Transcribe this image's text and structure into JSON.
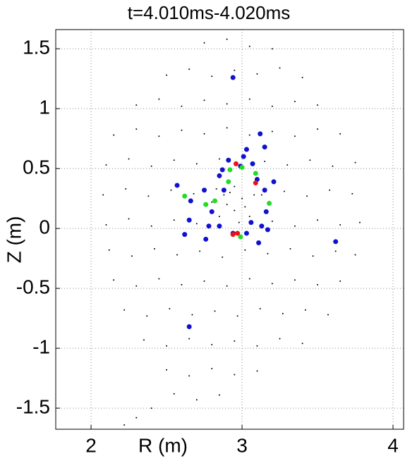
{
  "chart_data": {
    "type": "scatter",
    "title": "t=4.010ms-4.020ms",
    "x_label": "R (m)",
    "y_label": "Z (m)",
    "xlim": [
      1.766,
      4.07
    ],
    "ylim": [
      -1.676,
      1.66
    ],
    "xticks": [
      2,
      3,
      4
    ],
    "yticks": [
      -1.5,
      -1,
      -0.5,
      0,
      0.5,
      1,
      1.5
    ],
    "grid": true,
    "series": [
      {
        "color": "#000000",
        "marker_size": 1,
        "x": [
          2.75,
          2.9,
          3.05,
          3.2,
          2.5,
          2.65,
          2.8,
          2.95,
          3.1,
          3.25,
          3.4,
          2.3,
          2.45,
          2.6,
          2.75,
          2.9,
          3.05,
          3.2,
          3.35,
          3.5,
          2.15,
          2.3,
          2.45,
          2.6,
          2.75,
          2.9,
          3.05,
          3.2,
          3.35,
          3.5,
          3.65,
          2.1,
          2.25,
          2.4,
          2.55,
          2.7,
          2.85,
          3.0,
          3.15,
          3.3,
          3.45,
          3.6,
          3.75,
          2.08,
          2.23,
          2.38,
          2.53,
          2.68,
          2.83,
          3.13,
          3.28,
          3.43,
          3.58,
          3.73,
          2.1,
          2.25,
          2.4,
          2.55,
          2.7,
          3.2,
          3.35,
          3.5,
          3.65,
          3.78,
          2.12,
          2.27,
          2.42,
          2.57,
          2.72,
          2.87,
          3.02,
          3.17,
          3.32,
          3.47,
          3.62,
          3.75,
          2.15,
          2.3,
          2.45,
          2.6,
          2.75,
          2.9,
          3.05,
          3.2,
          3.35,
          3.5,
          3.65,
          2.22,
          2.37,
          2.52,
          2.67,
          2.82,
          2.97,
          3.12,
          3.27,
          3.42,
          3.57,
          2.35,
          2.5,
          2.65,
          2.8,
          2.95,
          3.1,
          3.25,
          3.4,
          2.5,
          2.65,
          2.8,
          2.95,
          3.1,
          2.55,
          2.7,
          2.85,
          2.4,
          2.3,
          2.22,
          2.9,
          2.95,
          3.0,
          2.85,
          3.05,
          2.92,
          2.98,
          2.88,
          3.02,
          2.95,
          2.8,
          3.08
        ],
        "y": [
          1.55,
          1.58,
          1.52,
          1.5,
          1.28,
          1.33,
          1.27,
          1.32,
          1.29,
          1.34,
          1.26,
          1.03,
          1.08,
          1.02,
          1.07,
          1.04,
          1.08,
          1.02,
          1.06,
          1.03,
          0.78,
          0.83,
          0.77,
          0.82,
          0.79,
          0.84,
          0.78,
          0.81,
          0.77,
          0.83,
          0.79,
          0.53,
          0.58,
          0.52,
          0.57,
          0.54,
          0.58,
          0.52,
          0.56,
          0.53,
          0.57,
          0.52,
          0.55,
          0.28,
          0.33,
          0.27,
          0.32,
          0.29,
          0.33,
          0.28,
          0.31,
          0.27,
          0.32,
          0.29,
          0.03,
          0.08,
          0.02,
          0.07,
          0.04,
          0.06,
          0.02,
          0.07,
          0.03,
          0.05,
          -0.18,
          -0.23,
          -0.17,
          -0.22,
          -0.19,
          -0.24,
          -0.18,
          -0.21,
          -0.17,
          -0.23,
          -0.19,
          -0.22,
          -0.43,
          -0.48,
          -0.42,
          -0.47,
          -0.44,
          -0.48,
          -0.42,
          -0.46,
          -0.43,
          -0.47,
          -0.44,
          -0.68,
          -0.73,
          -0.67,
          -0.72,
          -0.69,
          -0.73,
          -0.67,
          -0.71,
          -0.68,
          -0.72,
          -0.93,
          -0.98,
          -0.92,
          -0.97,
          -0.94,
          -0.98,
          -0.92,
          -0.96,
          -1.18,
          -1.23,
          -1.17,
          -1.22,
          -1.19,
          -1.38,
          -1.43,
          -1.39,
          -1.5,
          -1.58,
          -1.64,
          0.2,
          0.15,
          0.25,
          0.1,
          0.1,
          0.3,
          0.05,
          0.28,
          0.18,
          0.35,
          0.22,
          0.28
        ]
      },
      {
        "color": "#1010d0",
        "marker_size": 3.5,
        "x": [
          2.94,
          3.12,
          3.15,
          2.57,
          3.21,
          2.66,
          2.65,
          2.62,
          2.76,
          3.11,
          3.62,
          2.65,
          2.91,
          3.01,
          3.07,
          2.85,
          2.8,
          2.85,
          2.94,
          3.03,
          3.13,
          3.16,
          3.15,
          2.75,
          2.88,
          3.1,
          2.99,
          2.78,
          3.17,
          3.06,
          2.87,
          3.03
        ],
        "y": [
          1.26,
          0.79,
          0.68,
          0.36,
          0.39,
          0.23,
          0.07,
          -0.05,
          -0.09,
          -0.12,
          -0.11,
          -0.82,
          0.57,
          0.6,
          0.54,
          0.44,
          0.14,
          0.02,
          -0.04,
          -0.04,
          0.02,
          0.14,
          0.32,
          0.32,
          0.32,
          0.41,
          0.52,
          0.02,
          -0.01,
          0.05,
          0.49,
          0.66
        ]
      },
      {
        "color": "#22dd22",
        "marker_size": 3.5,
        "x": [
          2.62,
          2.76,
          2.82,
          2.91,
          2.92,
          3.0,
          3.09,
          3.18,
          2.99
        ],
        "y": [
          0.27,
          0.2,
          0.23,
          0.39,
          0.49,
          0.51,
          0.46,
          0.21,
          -0.07
        ]
      },
      {
        "color": "#ee1111",
        "marker_size": 3.5,
        "x": [
          2.96,
          3.09,
          2.94,
          2.97
        ],
        "y": [
          0.54,
          0.38,
          -0.05,
          -0.04
        ]
      }
    ]
  }
}
